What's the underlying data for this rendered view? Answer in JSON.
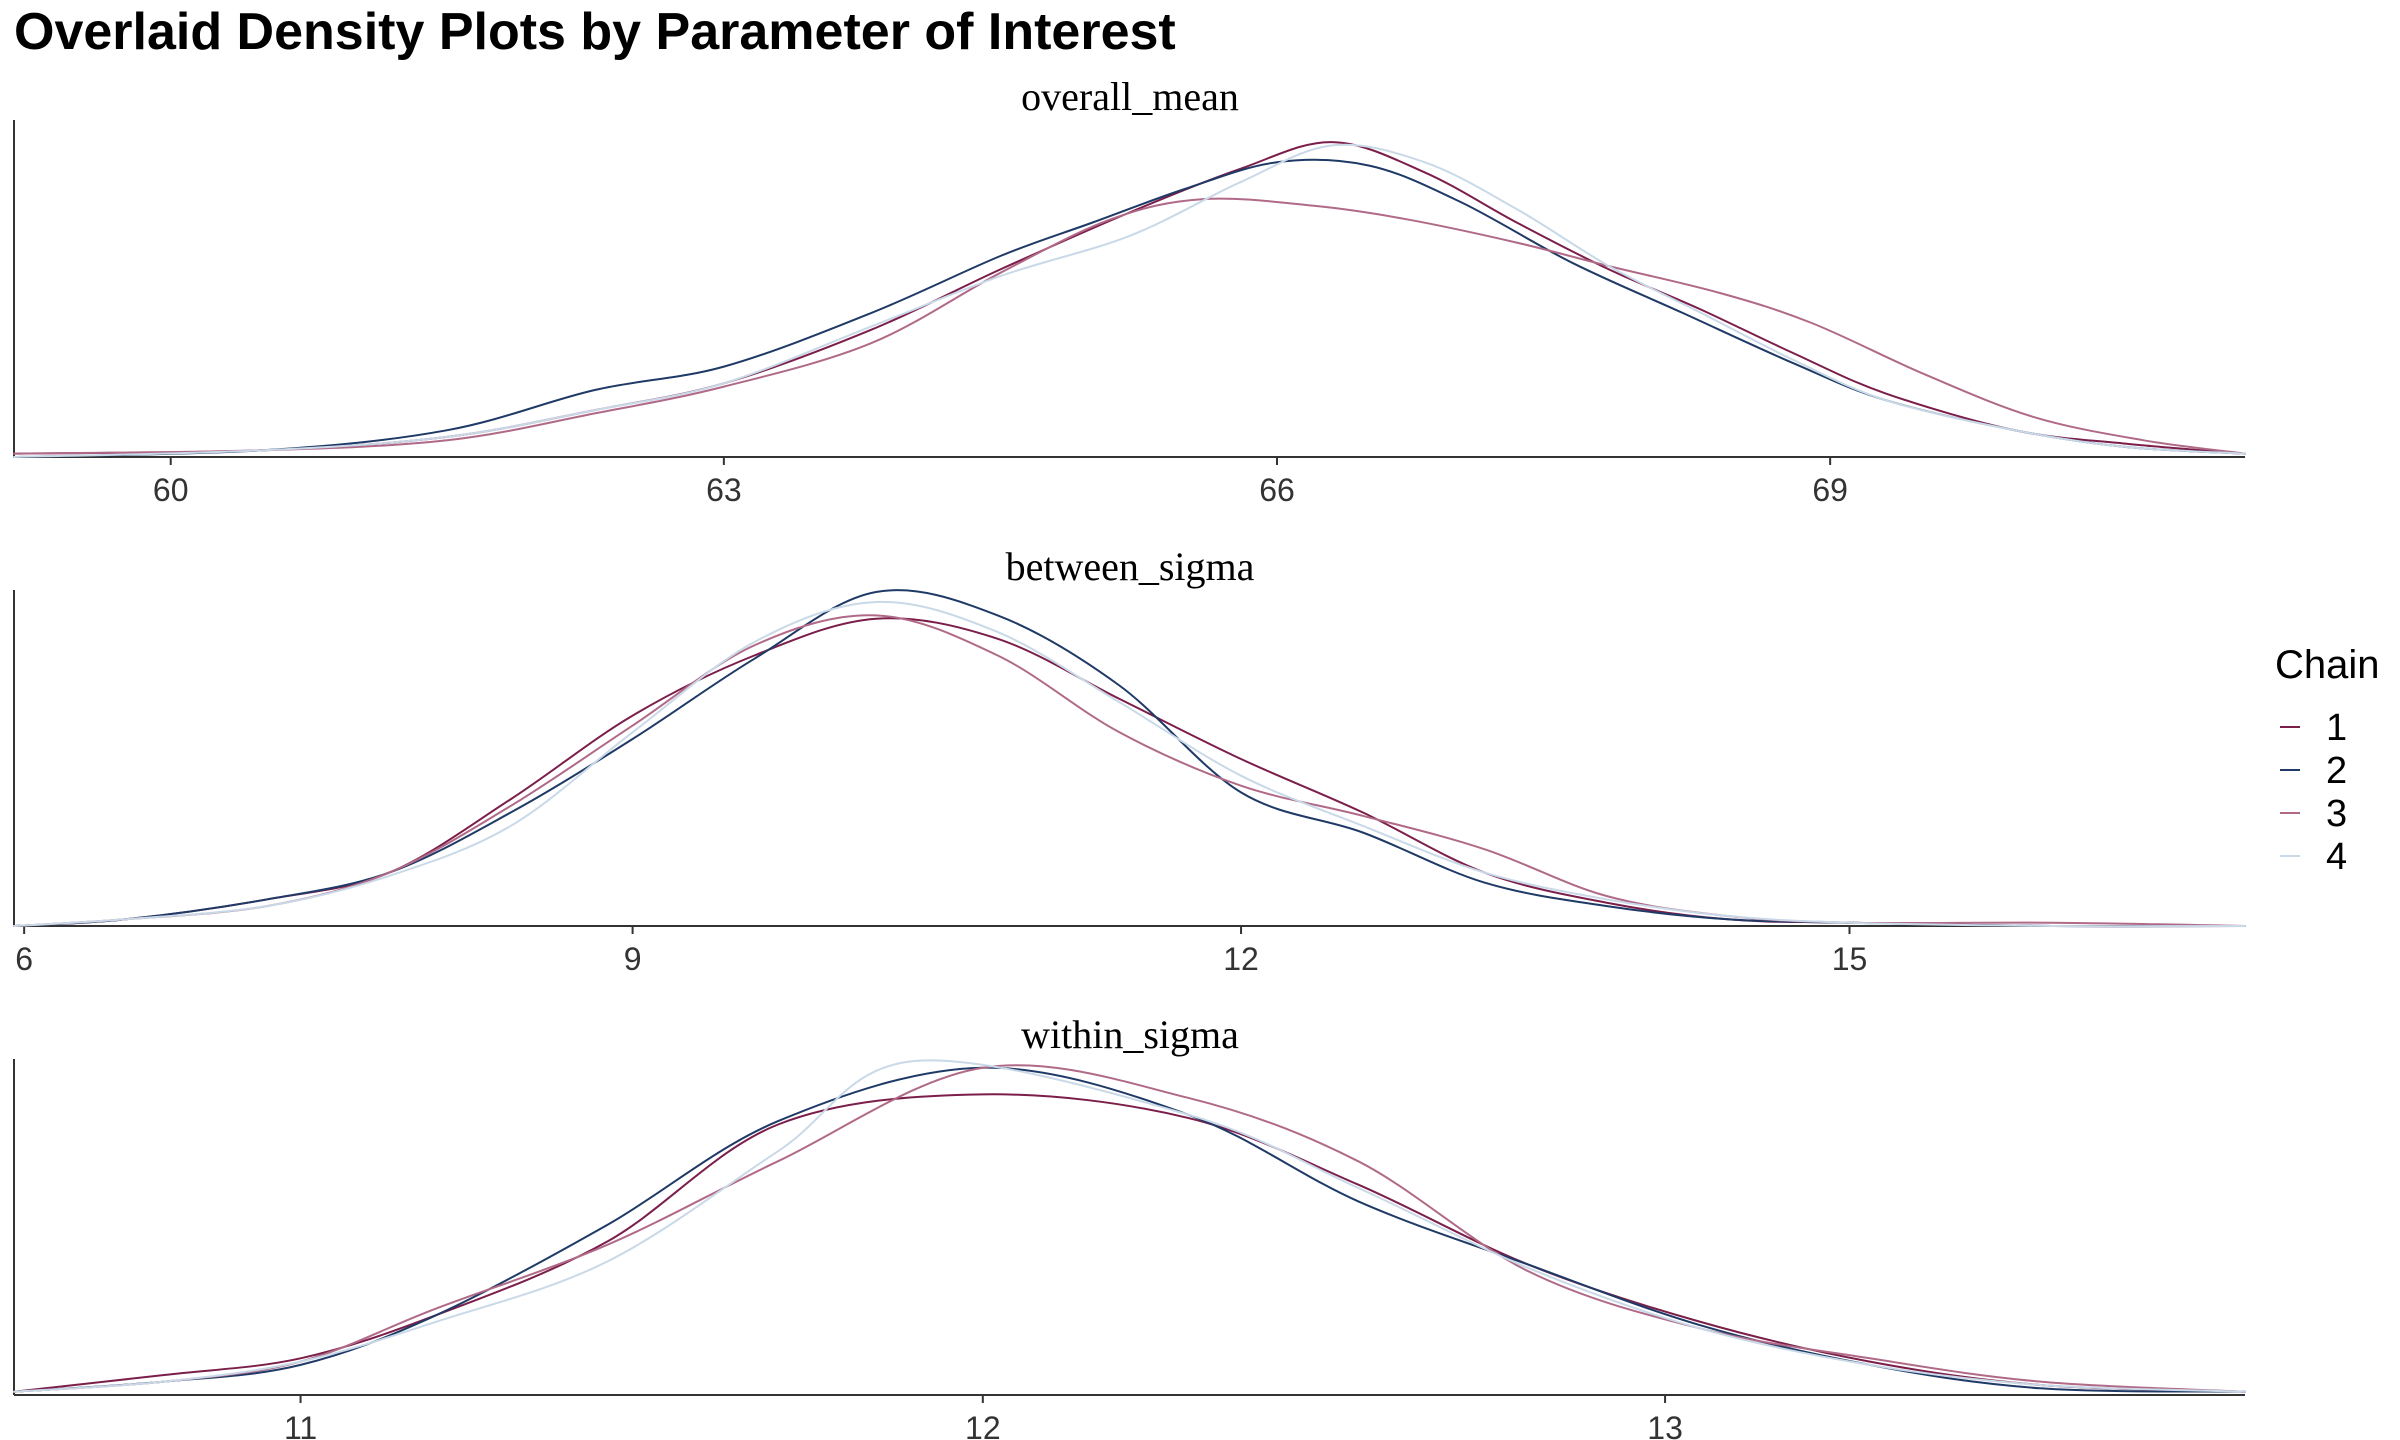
{
  "title": "Overlaid Density Plots by Parameter of Interest",
  "legend": {
    "title": "Chain",
    "entries": [
      {
        "label": "1",
        "color": "#7b1e4a"
      },
      {
        "label": "2",
        "color": "#1f3a66"
      },
      {
        "label": "3",
        "color": "#b06a88"
      },
      {
        "label": "4",
        "color": "#c9d9e8"
      }
    ]
  },
  "chart_data": [
    {
      "type": "line",
      "title": "overall_mean",
      "xlim": [
        59.15,
        71.25
      ],
      "ticks": [
        60,
        63,
        66,
        69
      ],
      "y_axis": "density",
      "series": [
        {
          "name": "1",
          "color": "#7b1e4a",
          "points": [
            [
              59.15,
              0.01
            ],
            [
              60.5,
              0.02
            ],
            [
              61.5,
              0.06
            ],
            [
              62.3,
              0.14
            ],
            [
              63.0,
              0.22
            ],
            [
              63.8,
              0.38
            ],
            [
              64.5,
              0.56
            ],
            [
              65.2,
              0.73
            ],
            [
              65.8,
              0.86
            ],
            [
              66.3,
              0.94
            ],
            [
              66.8,
              0.85
            ],
            [
              67.3,
              0.7
            ],
            [
              67.8,
              0.56
            ],
            [
              68.3,
              0.44
            ],
            [
              68.8,
              0.31
            ],
            [
              69.3,
              0.19
            ],
            [
              70.0,
              0.08
            ],
            [
              70.6,
              0.04
            ],
            [
              71.25,
              0.01
            ]
          ]
        },
        {
          "name": "2",
          "color": "#1f3a66",
          "points": [
            [
              59.15,
              0.0
            ],
            [
              60.5,
              0.02
            ],
            [
              61.5,
              0.08
            ],
            [
              62.3,
              0.2
            ],
            [
              63.0,
              0.27
            ],
            [
              63.8,
              0.43
            ],
            [
              64.5,
              0.6
            ],
            [
              65.0,
              0.7
            ],
            [
              65.5,
              0.8
            ],
            [
              66.0,
              0.88
            ],
            [
              66.5,
              0.87
            ],
            [
              67.0,
              0.76
            ],
            [
              67.6,
              0.58
            ],
            [
              68.2,
              0.43
            ],
            [
              68.8,
              0.28
            ],
            [
              69.3,
              0.17
            ],
            [
              70.0,
              0.08
            ],
            [
              70.6,
              0.03
            ],
            [
              71.25,
              0.01
            ]
          ]
        },
        {
          "name": "3",
          "color": "#b06a88",
          "points": [
            [
              59.15,
              0.01
            ],
            [
              60.5,
              0.02
            ],
            [
              61.5,
              0.05
            ],
            [
              62.3,
              0.13
            ],
            [
              63.0,
              0.21
            ],
            [
              63.8,
              0.34
            ],
            [
              64.5,
              0.55
            ],
            [
              65.1,
              0.71
            ],
            [
              65.6,
              0.77
            ],
            [
              66.2,
              0.75
            ],
            [
              66.7,
              0.71
            ],
            [
              67.3,
              0.64
            ],
            [
              67.8,
              0.57
            ],
            [
              68.4,
              0.49
            ],
            [
              68.9,
              0.4
            ],
            [
              69.5,
              0.25
            ],
            [
              70.1,
              0.12
            ],
            [
              70.7,
              0.05
            ],
            [
              71.25,
              0.01
            ]
          ]
        },
        {
          "name": "4",
          "color": "#c9d9e8",
          "points": [
            [
              59.15,
              0.0
            ],
            [
              60.5,
              0.02
            ],
            [
              61.5,
              0.06
            ],
            [
              62.3,
              0.14
            ],
            [
              63.0,
              0.22
            ],
            [
              63.8,
              0.39
            ],
            [
              64.5,
              0.54
            ],
            [
              65.2,
              0.66
            ],
            [
              65.8,
              0.82
            ],
            [
              66.3,
              0.93
            ],
            [
              66.8,
              0.88
            ],
            [
              67.3,
              0.74
            ],
            [
              67.8,
              0.57
            ],
            [
              68.3,
              0.43
            ],
            [
              68.8,
              0.29
            ],
            [
              69.3,
              0.17
            ],
            [
              70.0,
              0.08
            ],
            [
              70.6,
              0.03
            ],
            [
              71.25,
              0.01
            ]
          ]
        }
      ]
    },
    {
      "type": "line",
      "title": "between_sigma",
      "xlim": [
        5.95,
        16.95
      ],
      "ticks": [
        6,
        9,
        12,
        15
      ],
      "y_axis": "density",
      "series": [
        {
          "name": "1",
          "color": "#7b1e4a",
          "points": [
            [
              5.95,
              0.0
            ],
            [
              6.5,
              0.02
            ],
            [
              7.2,
              0.08
            ],
            [
              7.8,
              0.16
            ],
            [
              8.4,
              0.38
            ],
            [
              9.0,
              0.63
            ],
            [
              9.6,
              0.81
            ],
            [
              10.2,
              0.92
            ],
            [
              10.8,
              0.86
            ],
            [
              11.4,
              0.68
            ],
            [
              12.0,
              0.5
            ],
            [
              12.6,
              0.34
            ],
            [
              13.2,
              0.16
            ],
            [
              13.8,
              0.07
            ],
            [
              14.4,
              0.02
            ],
            [
              15.0,
              0.01
            ],
            [
              16.0,
              0.0
            ],
            [
              16.95,
              0.0
            ]
          ]
        },
        {
          "name": "2",
          "color": "#1f3a66",
          "points": [
            [
              5.95,
              0.0
            ],
            [
              6.5,
              0.02
            ],
            [
              7.2,
              0.08
            ],
            [
              7.8,
              0.16
            ],
            [
              8.4,
              0.34
            ],
            [
              9.0,
              0.56
            ],
            [
              9.6,
              0.8
            ],
            [
              10.2,
              1.0
            ],
            [
              10.8,
              0.93
            ],
            [
              11.4,
              0.72
            ],
            [
              12.0,
              0.4
            ],
            [
              12.6,
              0.28
            ],
            [
              13.2,
              0.13
            ],
            [
              13.8,
              0.06
            ],
            [
              14.4,
              0.02
            ],
            [
              15.0,
              0.01
            ],
            [
              16.0,
              0.0
            ],
            [
              16.95,
              0.0
            ]
          ]
        },
        {
          "name": "3",
          "color": "#b06a88",
          "points": [
            [
              5.95,
              0.0
            ],
            [
              6.5,
              0.02
            ],
            [
              7.2,
              0.06
            ],
            [
              7.8,
              0.16
            ],
            [
              8.4,
              0.36
            ],
            [
              9.0,
              0.6
            ],
            [
              9.6,
              0.84
            ],
            [
              10.2,
              0.93
            ],
            [
              10.8,
              0.81
            ],
            [
              11.4,
              0.58
            ],
            [
              12.0,
              0.42
            ],
            [
              12.6,
              0.33
            ],
            [
              13.2,
              0.23
            ],
            [
              13.8,
              0.09
            ],
            [
              14.4,
              0.03
            ],
            [
              15.0,
              0.01
            ],
            [
              16.0,
              0.01
            ],
            [
              16.95,
              0.0
            ]
          ]
        },
        {
          "name": "4",
          "color": "#c9d9e8",
          "points": [
            [
              5.95,
              0.0
            ],
            [
              6.5,
              0.02
            ],
            [
              7.2,
              0.06
            ],
            [
              7.8,
              0.15
            ],
            [
              8.4,
              0.3
            ],
            [
              9.0,
              0.58
            ],
            [
              9.6,
              0.85
            ],
            [
              10.2,
              0.97
            ],
            [
              10.8,
              0.88
            ],
            [
              11.4,
              0.67
            ],
            [
              12.0,
              0.45
            ],
            [
              12.6,
              0.3
            ],
            [
              13.2,
              0.16
            ],
            [
              13.8,
              0.08
            ],
            [
              14.4,
              0.03
            ],
            [
              15.0,
              0.01
            ],
            [
              16.0,
              0.0
            ],
            [
              16.95,
              0.0
            ]
          ]
        }
      ]
    },
    {
      "type": "line",
      "title": "within_sigma",
      "xlim": [
        10.58,
        13.85
      ],
      "ticks": [
        11,
        12,
        13
      ],
      "y_axis": "density",
      "series": [
        {
          "name": "1",
          "color": "#7b1e4a",
          "points": [
            [
              10.58,
              0.01
            ],
            [
              10.8,
              0.06
            ],
            [
              11.0,
              0.11
            ],
            [
              11.2,
              0.24
            ],
            [
              11.45,
              0.46
            ],
            [
              11.7,
              0.81
            ],
            [
              12.0,
              0.9
            ],
            [
              12.3,
              0.83
            ],
            [
              12.55,
              0.63
            ],
            [
              12.8,
              0.39
            ],
            [
              13.05,
              0.22
            ],
            [
              13.3,
              0.1
            ],
            [
              13.55,
              0.03
            ],
            [
              13.85,
              0.01
            ]
          ]
        },
        {
          "name": "2",
          "color": "#1f3a66",
          "points": [
            [
              10.58,
              0.01
            ],
            [
              10.8,
              0.04
            ],
            [
              11.0,
              0.09
            ],
            [
              11.2,
              0.24
            ],
            [
              11.45,
              0.51
            ],
            [
              11.7,
              0.82
            ],
            [
              12.0,
              0.98
            ],
            [
              12.3,
              0.84
            ],
            [
              12.55,
              0.58
            ],
            [
              12.8,
              0.39
            ],
            [
              13.05,
              0.21
            ],
            [
              13.3,
              0.09
            ],
            [
              13.55,
              0.02
            ],
            [
              13.85,
              0.01
            ]
          ]
        },
        {
          "name": "3",
          "color": "#b06a88",
          "points": [
            [
              10.58,
              0.01
            ],
            [
              10.8,
              0.04
            ],
            [
              11.0,
              0.1
            ],
            [
              11.2,
              0.26
            ],
            [
              11.45,
              0.45
            ],
            [
              11.7,
              0.7
            ],
            [
              12.0,
              0.98
            ],
            [
              12.3,
              0.89
            ],
            [
              12.55,
              0.7
            ],
            [
              12.8,
              0.37
            ],
            [
              13.05,
              0.2
            ],
            [
              13.3,
              0.11
            ],
            [
              13.55,
              0.04
            ],
            [
              13.85,
              0.01
            ]
          ]
        },
        {
          "name": "4",
          "color": "#c9d9e8",
          "points": [
            [
              10.58,
              0.01
            ],
            [
              10.8,
              0.04
            ],
            [
              11.0,
              0.1
            ],
            [
              11.2,
              0.22
            ],
            [
              11.45,
              0.4
            ],
            [
              11.7,
              0.73
            ],
            [
              11.9,
              1.0
            ],
            [
              12.3,
              0.84
            ],
            [
              12.55,
              0.62
            ],
            [
              12.8,
              0.38
            ],
            [
              13.05,
              0.2
            ],
            [
              13.3,
              0.09
            ],
            [
              13.55,
              0.03
            ],
            [
              13.85,
              0.01
            ]
          ]
        }
      ]
    }
  ]
}
